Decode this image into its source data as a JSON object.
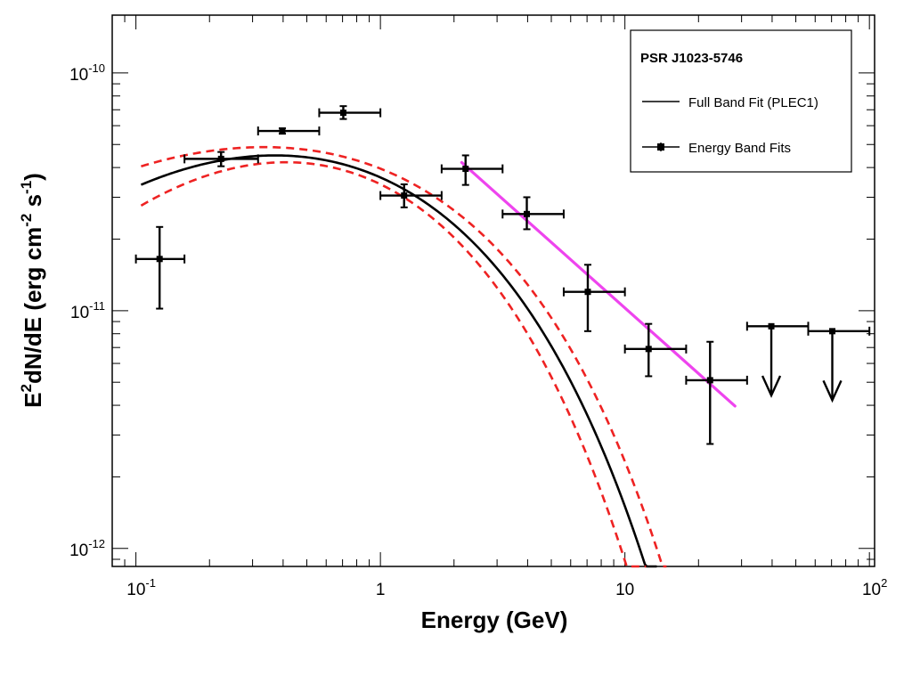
{
  "chart_data": {
    "type": "scatter",
    "title": "",
    "xlabel": "Energy (GeV)",
    "ylabel_parts": [
      "E",
      "2",
      "dN/dE (erg cm",
      "-2",
      " s",
      "-1",
      ")"
    ],
    "x_scale": "log",
    "y_scale": "log",
    "xlim": [
      0.08,
      105
    ],
    "ylim": [
      8.4e-13,
      1.75e-10
    ],
    "x_ticks": [
      {
        "value": 0.1,
        "base": "10",
        "exp": "-1"
      },
      {
        "value": 1,
        "base": "1",
        "exp": ""
      },
      {
        "value": 10,
        "base": "10",
        "exp": ""
      },
      {
        "value": 100,
        "base": "10",
        "exp": "2"
      }
    ],
    "y_ticks": [
      {
        "value": 1e-12,
        "base": "10",
        "exp": "-12"
      },
      {
        "value": 1e-11,
        "base": "10",
        "exp": "-11"
      },
      {
        "value": 1e-10,
        "base": "10",
        "exp": "-10"
      }
    ],
    "legend": {
      "title": "PSR J1023-5746",
      "entries": [
        "Full Band Fit (PLEC1)",
        "Energy Band Fits"
      ],
      "position": "top-right"
    },
    "series": [
      {
        "name": "Energy Band Fits",
        "points": [
          {
            "x": 0.125,
            "y": 1.65e-11,
            "xlo": 0.1,
            "xhi": 0.158,
            "ylo": 1.02e-11,
            "yhi": 2.25e-11
          },
          {
            "x": 0.223,
            "y": 4.35e-11,
            "xlo": 0.158,
            "xhi": 0.316,
            "ylo": 4.05e-11,
            "yhi": 4.65e-11
          },
          {
            "x": 0.397,
            "y": 5.7e-11,
            "xlo": 0.316,
            "xhi": 0.562,
            "ylo": 5.55e-11,
            "yhi": 5.85e-11
          },
          {
            "x": 0.705,
            "y": 6.8e-11,
            "xlo": 0.562,
            "xhi": 1.0,
            "ylo": 6.4e-11,
            "yhi": 7.25e-11
          },
          {
            "x": 1.25,
            "y": 3.05e-11,
            "xlo": 1.0,
            "xhi": 1.78,
            "ylo": 2.72e-11,
            "yhi": 3.4e-11
          },
          {
            "x": 2.23,
            "y": 3.95e-11,
            "xlo": 1.78,
            "xhi": 3.16,
            "ylo": 3.38e-11,
            "yhi": 4.5e-11
          },
          {
            "x": 3.97,
            "y": 2.55e-11,
            "xlo": 3.16,
            "xhi": 5.62,
            "ylo": 2.2e-11,
            "yhi": 3e-11
          },
          {
            "x": 7.05,
            "y": 1.2e-11,
            "xlo": 5.62,
            "xhi": 10.0,
            "ylo": 8.2e-12,
            "yhi": 1.56e-11
          },
          {
            "x": 12.5,
            "y": 6.9e-12,
            "xlo": 10.0,
            "xhi": 17.8,
            "ylo": 5.3e-12,
            "yhi": 8.8e-12
          },
          {
            "x": 22.3,
            "y": 5.1e-12,
            "xlo": 17.8,
            "xhi": 31.6,
            "ylo": 2.75e-12,
            "yhi": 7.4e-12
          }
        ]
      },
      {
        "name": "Upper Limits",
        "points": [
          {
            "x": 39.7,
            "y": 8.6e-12,
            "xlo": 31.6,
            "xhi": 56.2,
            "arrow_to": 4.4e-12
          },
          {
            "x": 70.5,
            "y": 8.2e-12,
            "xlo": 56.2,
            "xhi": 100.0,
            "arrow_to": 4.2e-12
          }
        ]
      },
      {
        "name": "Full Band Fit (PLEC1)",
        "model": "plec1",
        "norm": 5.98e-11,
        "peak_energy": 0.72,
        "peak_shape": 0.13,
        "cutoff_energy": 2.6,
        "cutoff_shape": 0.76,
        "x_range": [
          0.105,
          13.5
        ],
        "color": "#000000"
      },
      {
        "name": "PLEC1 upper bound",
        "model": "plec1",
        "norm": 6.25e-11,
        "peak_energy": 0.72,
        "peak_shape": 0.096,
        "cutoff_energy": 2.85,
        "cutoff_shape": 0.77,
        "x_range": [
          0.105,
          14.8
        ],
        "color": "#ee2222",
        "dashed": true
      },
      {
        "name": "PLEC1 lower bound",
        "model": "plec1",
        "norm": 5.71e-11,
        "peak_energy": 0.72,
        "peak_shape": 0.172,
        "cutoff_energy": 2.45,
        "cutoff_shape": 0.775,
        "x_range": [
          0.105,
          12.2
        ],
        "color": "#ee2222",
        "dashed": true
      },
      {
        "name": "High-energy power law",
        "x": [
          2.15,
          28.2
        ],
        "y": [
          4.2e-11,
          3.97e-12
        ],
        "color": "#ee44ee"
      }
    ]
  }
}
